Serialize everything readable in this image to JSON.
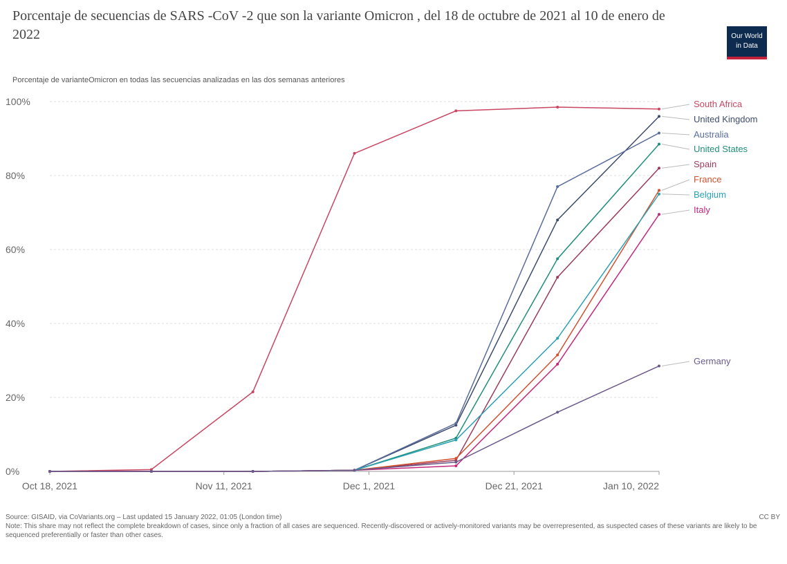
{
  "header": {
    "title": "Porcentaje de secuencias de SARS -CoV -2 que son la variante Omicron , del 18 de octubre de 2021 al 10 de enero de 2022",
    "subtitle": "Porcentaje de varianteOmicron en todas las secuencias analizadas en las dos semanas anteriores",
    "logo_line1": "Our World",
    "logo_line2": "in Data"
  },
  "footer": {
    "source": "Source: GISAID, via CoVariants.org – Last updated 15 January 2022, 01:05 (London time)",
    "license": "CC BY",
    "note": "Note: This share may not reflect the complete breakdown of cases, since only a fraction of all cases are sequenced. Recently-discovered or actively-monitored variants may be overrepresented, as suspected cases of these variants are likely to be sequenced preferentially or faster than other cases."
  },
  "chart_data": {
    "type": "line",
    "x": [
      "2021-10-18",
      "2021-11-01",
      "2021-11-15",
      "2021-11-29",
      "2021-12-13",
      "2021-12-27",
      "2022-01-10"
    ],
    "x_ticks": [
      "2021-10-18",
      "2021-11-11",
      "2021-12-01",
      "2021-12-21",
      "2022-01-10"
    ],
    "x_tick_labels": [
      "Oct 18, 2021",
      "Nov 11, 2021",
      "Dec 1, 2021",
      "Dec 21, 2021",
      "Jan 10, 2022"
    ],
    "y_ticks": [
      0,
      20,
      40,
      60,
      80,
      100
    ],
    "y_tick_labels": [
      "0%",
      "20%",
      "40%",
      "60%",
      "80%",
      "100%"
    ],
    "ylim": [
      0,
      100
    ],
    "grid": "horizontal-dashed",
    "legend": "right",
    "series": [
      {
        "name": "South Africa",
        "color": "#c94562",
        "values": [
          0,
          0.5,
          21.5,
          86,
          97.5,
          98.5,
          98
        ]
      },
      {
        "name": "United Kingdom",
        "color": "#3d4b6b",
        "values": [
          0,
          0,
          0,
          0.3,
          12.5,
          68,
          96
        ]
      },
      {
        "name": "Australia",
        "color": "#5a6d9a",
        "values": [
          0,
          0,
          0,
          0.3,
          13,
          77,
          91.5
        ]
      },
      {
        "name": "United States",
        "color": "#1f8f7a",
        "values": [
          0,
          0,
          0,
          0.3,
          9,
          57.5,
          88.5
        ]
      },
      {
        "name": "Spain",
        "color": "#9b3b5a",
        "values": [
          0,
          0,
          0,
          0.3,
          3,
          52.5,
          82
        ]
      },
      {
        "name": "France",
        "color": "#d2502e",
        "values": [
          0,
          0,
          0,
          0.3,
          3.5,
          31.5,
          76
        ]
      },
      {
        "name": "Belgium",
        "color": "#2ba0b3",
        "values": [
          0,
          0,
          0,
          0.3,
          8.5,
          36,
          75
        ]
      },
      {
        "name": "Italy",
        "color": "#c4287a",
        "values": [
          0,
          0,
          0,
          0.3,
          1.5,
          29,
          69.5
        ]
      },
      {
        "name": "Germany",
        "color": "#6a5a8a",
        "values": [
          0,
          0,
          0,
          0.3,
          2.5,
          16,
          28.5
        ]
      }
    ]
  }
}
